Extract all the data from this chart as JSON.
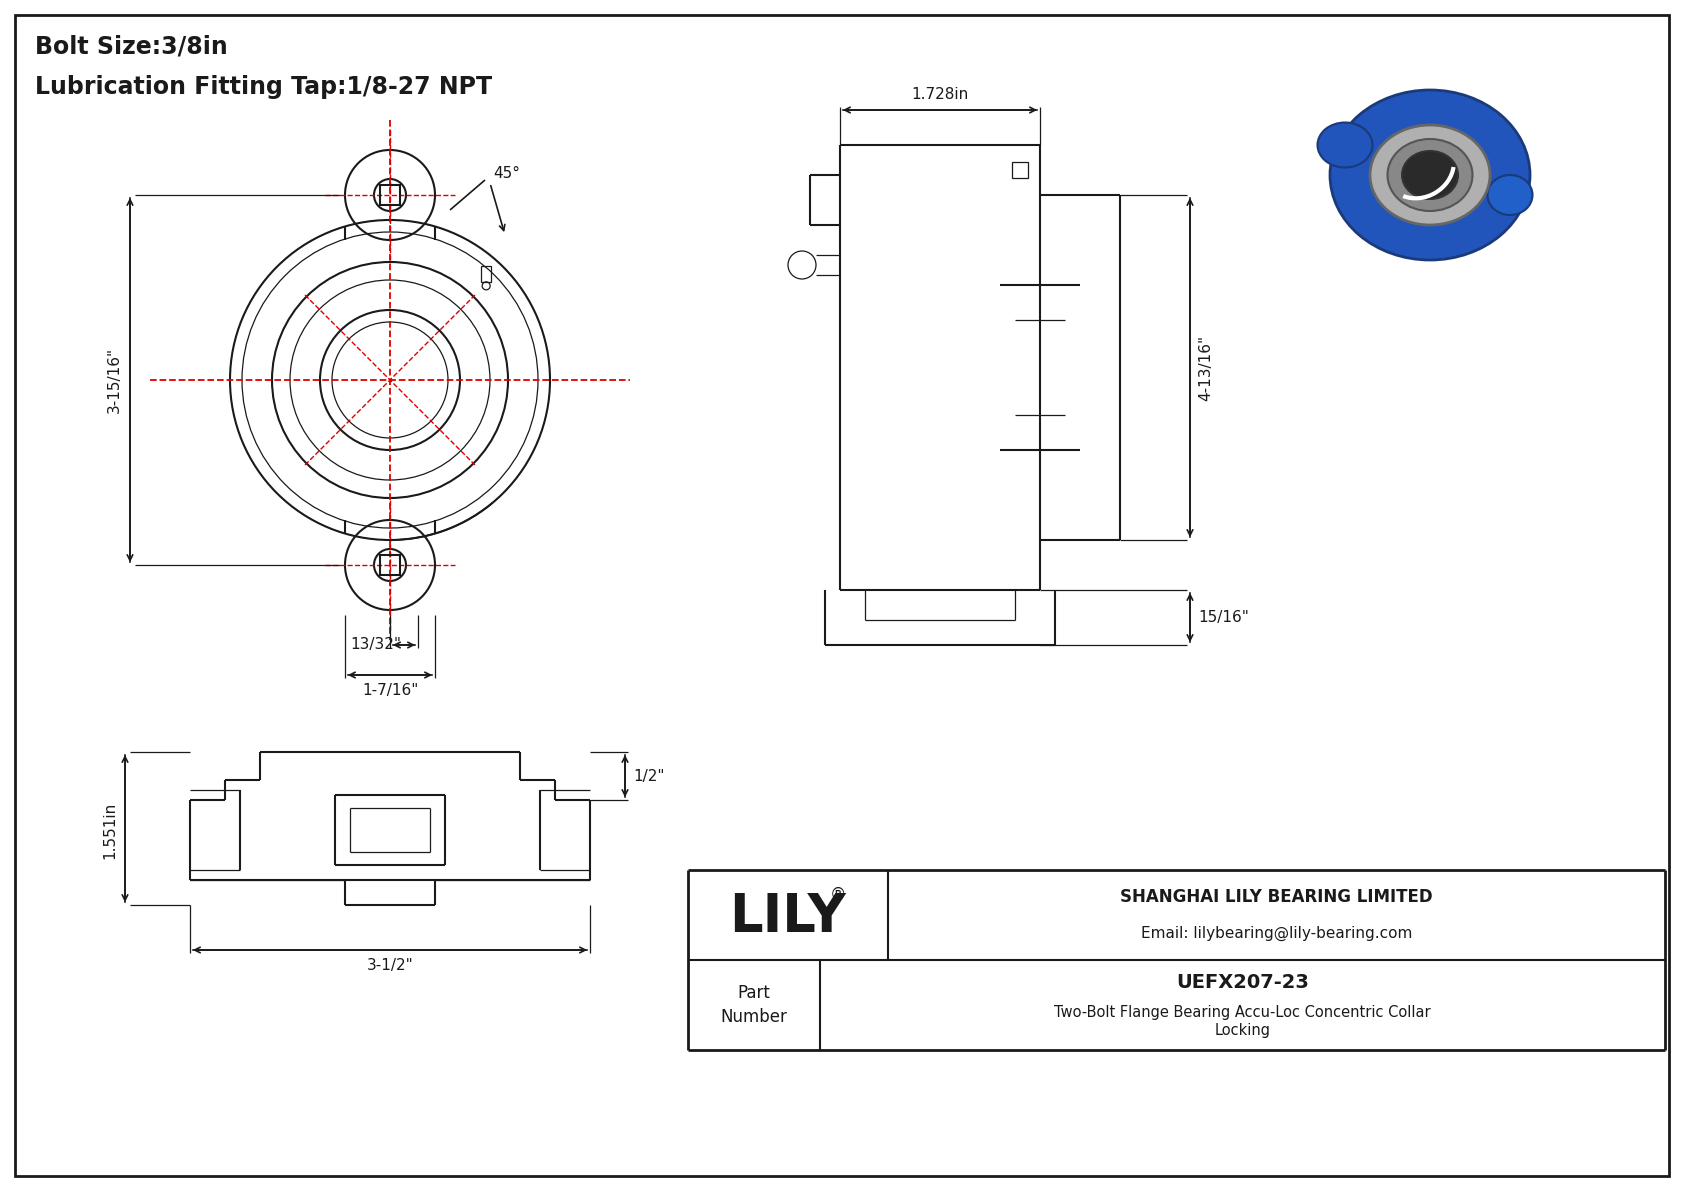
{
  "bg_color": "#ffffff",
  "line_color": "#1a1a1a",
  "red_color": "#dd0000",
  "title_line1": "Bolt Size:3/8in",
  "title_line2": "Lubrication Fitting Tap:1/8-27 NPT",
  "company": "SHANGHAI LILY BEARING LIMITED",
  "email": "Email: lilybearing@lily-bearing.com",
  "part_number": "UEFX207-23",
  "part_desc": "Two-Bolt Flange Bearing Accu-Loc Concentric Collar",
  "part_desc2": "Locking",
  "brand": "LILY",
  "dim_3_15_16": "3-15/16\"",
  "dim_13_32": "13/32\"",
  "dim_1_7_16": "1-7/16\"",
  "dim_45": "45°",
  "dim_1_728": "1.728in",
  "dim_4_13_16": "4-13/16\"",
  "dim_15_16": "15/16\"",
  "dim_1_551": "1.551in",
  "dim_1_2": "1/2\"",
  "dim_3_1_2": "3-1/2\""
}
